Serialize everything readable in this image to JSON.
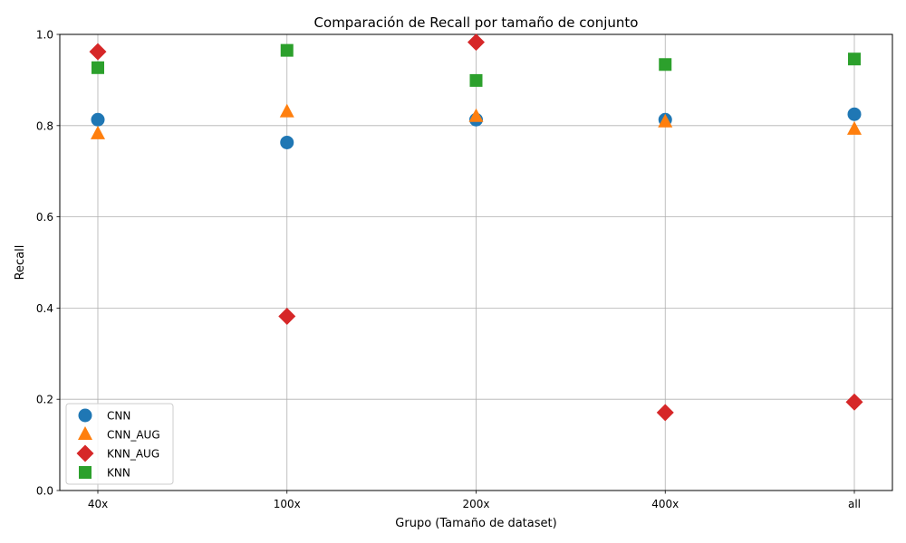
{
  "chart_data": {
    "type": "scatter",
    "title": "Comparación de Recall por tamaño de conjunto",
    "xlabel": "Grupo (Tamaño de dataset)",
    "ylabel": "Recall",
    "categories": [
      "40x",
      "100x",
      "200x",
      "400x",
      "all"
    ],
    "ylim": [
      0,
      1
    ],
    "yticks": [
      "0.0",
      "0.2",
      "0.4",
      "0.6",
      "0.8",
      "1.0"
    ],
    "grid": true,
    "legend_position": "lower-left",
    "series": [
      {
        "name": "CNN",
        "marker": "circle",
        "color": "#1f77b4",
        "values": [
          0.813,
          0.763,
          0.813,
          0.813,
          0.825
        ]
      },
      {
        "name": "CNN_AUG",
        "marker": "triangle",
        "color": "#ff7f0e",
        "values": [
          0.782,
          0.83,
          0.82,
          0.808,
          0.792
        ]
      },
      {
        "name": "KNN_AUG",
        "marker": "diamond",
        "color": "#d62728",
        "values": [
          0.962,
          0.382,
          0.983,
          0.171,
          0.194
        ]
      },
      {
        "name": "KNN",
        "marker": "square",
        "color": "#2ca02c",
        "values": [
          0.927,
          0.965,
          0.899,
          0.934,
          0.946
        ]
      }
    ]
  }
}
